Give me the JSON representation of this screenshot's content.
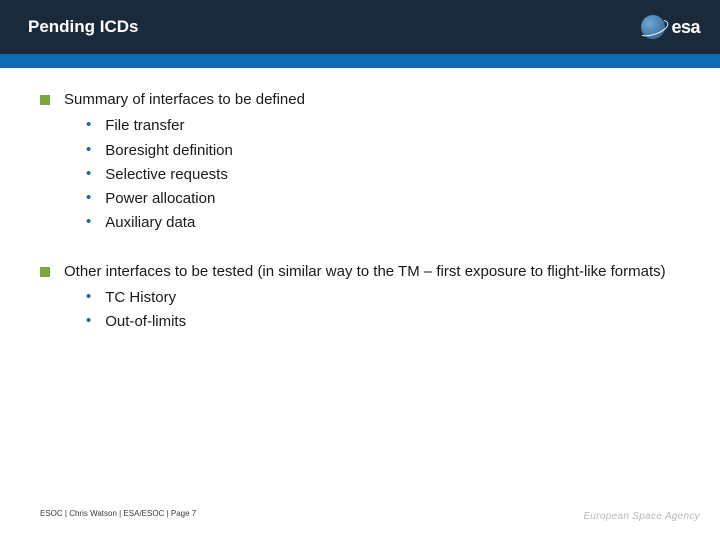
{
  "header": {
    "title": "Pending ICDs",
    "logo_text": "esa"
  },
  "sections": [
    {
      "title": "Summary of interfaces to be defined",
      "items": [
        "File transfer",
        "Boresight definition",
        "Selective requests",
        "Power allocation",
        "Auxiliary data"
      ]
    },
    {
      "title": "Other interfaces to be tested (in similar way to the TM – first exposure to flight-like formats)",
      "items": [
        "TC History",
        "Out-of-limits"
      ]
    }
  ],
  "footer": {
    "left": "ESOC | Chris Watson | ESA/ESOC | Page 7",
    "right": "European Space Agency"
  },
  "colors": {
    "header_dark": "#1a2a3a",
    "header_blue": "#0d6bb8",
    "square_bullet": "#7aa83c",
    "dot_bullet": "#1865a8",
    "text": "#1a1a1a",
    "footer_text": "#3b3b3b",
    "agency_text": "#b8b8b8"
  }
}
